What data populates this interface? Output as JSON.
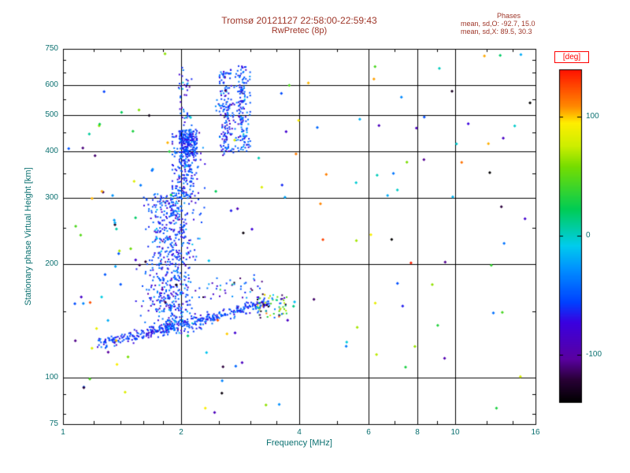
{
  "window": {
    "background": "#ffffff"
  },
  "colors": {
    "title_text": "#9e3528",
    "axis_text": "#0a7070",
    "grid": "#000000",
    "box": "#000000",
    "deg_label": "#ff0000",
    "dense_point_blue": "#2244dd"
  },
  "title": "Tromsø 20121127 22:58:00-22:59:43",
  "subtitle": "RwPretec (8p)",
  "stats": {
    "header": "Phases",
    "line_o": "mean, sd,O: -92.7, 15.0",
    "line_x": "mean, sd,X:  89.5, 30.3"
  },
  "chart_data": {
    "type": "scatter",
    "title": "Tromsø 20121127 22:58:00-22:59:43",
    "subtitle": "RwPretec (8p)",
    "xlabel": "Frequency [MHz]",
    "ylabel": "Stationary phase Virtual Height [km]",
    "x_scale": "log",
    "y_scale": "log",
    "xlim": [
      1,
      16
    ],
    "ylim": [
      75,
      750
    ],
    "grid": true,
    "x_ticks": [
      {
        "value": 1,
        "label": "1"
      },
      {
        "value": 2,
        "label": "2"
      },
      {
        "value": 4,
        "label": "4"
      },
      {
        "value": 6,
        "label": "6"
      },
      {
        "value": 8,
        "label": "8"
      },
      {
        "value": 10,
        "label": "10"
      },
      {
        "value": 16,
        "label": "16"
      }
    ],
    "x_minor_ticks": [
      1.2,
      1.4,
      1.6,
      1.8,
      2.5,
      3,
      3.5,
      5,
      7,
      9,
      12,
      14
    ],
    "y_ticks": [
      {
        "value": 75,
        "label": "75"
      },
      {
        "value": 100,
        "label": "100"
      },
      {
        "value": 200,
        "label": "200"
      },
      {
        "value": 300,
        "label": "300"
      },
      {
        "value": 400,
        "label": "400"
      },
      {
        "value": 500,
        "label": "500"
      },
      {
        "value": 600,
        "label": "600"
      },
      {
        "value": 750,
        "label": "750"
      }
    ],
    "y_minor_ticks": [
      80,
      90,
      150,
      250,
      350,
      450,
      550,
      650,
      700
    ],
    "x_gridlines": [
      2,
      4,
      6,
      8,
      10
    ],
    "y_gridlines": [
      100,
      200,
      300,
      400,
      500,
      600
    ],
    "colorbar": {
      "label": "[deg]",
      "min": -140,
      "max": 140,
      "ticks": [
        {
          "value": 100,
          "label": "100"
        },
        {
          "value": 0,
          "label": "0"
        },
        {
          "value": -100,
          "label": "-100"
        }
      ],
      "stops": [
        {
          "t": 0.0,
          "color": "#000000"
        },
        {
          "t": 0.07,
          "color": "#2a0038"
        },
        {
          "t": 0.13,
          "color": "#5a00a0"
        },
        {
          "t": 0.24,
          "color": "#3a00e0"
        },
        {
          "t": 0.3,
          "color": "#0040ff"
        },
        {
          "t": 0.4,
          "color": "#0090ff"
        },
        {
          "t": 0.47,
          "color": "#00ccee"
        },
        {
          "t": 0.58,
          "color": "#00cc55"
        },
        {
          "t": 0.71,
          "color": "#77dd00"
        },
        {
          "t": 0.77,
          "color": "#ccee00"
        },
        {
          "t": 0.84,
          "color": "#ffee00"
        },
        {
          "t": 0.89,
          "color": "#ff8800"
        },
        {
          "t": 1.0,
          "color": "#ff1100"
        }
      ]
    },
    "point_seed": 20121127,
    "clusters": [
      {
        "name": "diagonal-base-trace",
        "kind": "diagonal",
        "count": 380,
        "f_range": [
          1.22,
          3.35
        ],
        "h_start": 124,
        "h_end": 159,
        "curve": 1.35,
        "h_jitter": 2.2,
        "phase_mean": -55,
        "phase_sd": 14,
        "size": 2
      },
      {
        "name": "main-e-region-column",
        "kind": "column",
        "count": 650,
        "f_center": 1.88,
        "f_logsd": 0.032,
        "f_clip": [
          1.5,
          2.3
        ],
        "h_range": [
          131,
          310
        ],
        "phase_mean": -55,
        "phase_sd": 18,
        "size": 2
      },
      {
        "name": "mid-column",
        "kind": "column",
        "count": 240,
        "f_center": 2.05,
        "f_logsd": 0.018,
        "f_clip": [
          1.9,
          2.3
        ],
        "h_range": [
          300,
          455
        ],
        "phase_mean": -55,
        "phase_sd": 16,
        "size": 2
      },
      {
        "name": "upper-blob-400km",
        "kind": "box",
        "count": 150,
        "f_range": [
          1.98,
          2.2
        ],
        "h_range": [
          390,
          458
        ],
        "phase_mean": -60,
        "phase_sd": 14,
        "size": 2
      },
      {
        "name": "striation-a",
        "kind": "column",
        "count": 160,
        "f_center": 2.6,
        "f_logsd": 0.01,
        "f_clip": [
          2.45,
          2.75
        ],
        "h_range": [
          390,
          665
        ],
        "phase_mean": -55,
        "phase_sd": 18,
        "size": 2
      },
      {
        "name": "striation-b",
        "kind": "column",
        "count": 160,
        "f_center": 2.86,
        "f_logsd": 0.01,
        "f_clip": [
          2.7,
          3.0
        ],
        "h_range": [
          400,
          675
        ],
        "phase_mean": -52,
        "phase_sd": 18,
        "size": 2
      },
      {
        "name": "high-column-2mhz",
        "kind": "box",
        "count": 40,
        "f_range": [
          1.97,
          2.13
        ],
        "h_range": [
          468,
          670
        ],
        "phase_mean": -55,
        "phase_sd": 25,
        "size": 2
      },
      {
        "name": "tip-cluster-mixed-phase",
        "kind": "box",
        "count": 75,
        "f_range": [
          3.12,
          3.72
        ],
        "h_range": [
          144,
          166
        ],
        "phase_range": [
          -140,
          125
        ],
        "size": 2
      },
      {
        "name": "upper-diagonal-sparse",
        "kind": "box",
        "count": 40,
        "f_range": [
          2.25,
          3.25
        ],
        "h_range": [
          162,
          188
        ],
        "phase_mean": -60,
        "phase_sd": 40,
        "size": 2
      },
      {
        "name": "random-sparse",
        "kind": "box",
        "count": 135,
        "f_range": [
          1.02,
          15.5
        ],
        "h_range": [
          80,
          730
        ],
        "phase_range": [
          -140,
          140
        ],
        "size": 3
      },
      {
        "name": "left-edge-sparse",
        "kind": "box",
        "count": 22,
        "f_range": [
          1.04,
          1.55
        ],
        "h_range": [
          90,
          620
        ],
        "phase_range": [
          -140,
          140
        ],
        "size": 3
      }
    ]
  }
}
